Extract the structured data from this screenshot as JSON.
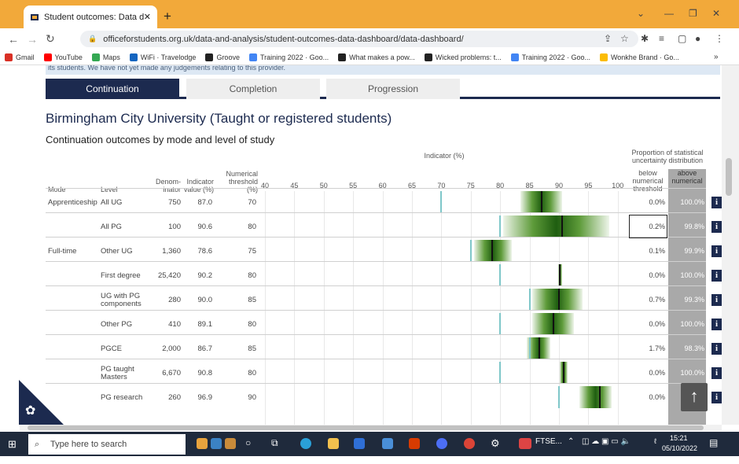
{
  "browser": {
    "tab_title": "Student outcomes: Data dashboa",
    "url": "officeforstudents.org.uk/data-and-analysis/student-outcomes-data-dashboard/data-dashboard/",
    "bookmarks": [
      {
        "label": "Gmail",
        "color": "#d93025"
      },
      {
        "label": "YouTube",
        "color": "#ff0000"
      },
      {
        "label": "Maps",
        "color": "#34a853"
      },
      {
        "label": "WiFi · Travelodge",
        "color": "#1565c0"
      },
      {
        "label": "Groove",
        "color": "#222222"
      },
      {
        "label": "Training 2022 · Goo...",
        "color": "#4285f4"
      },
      {
        "label": "What makes a pow...",
        "color": "#222222"
      },
      {
        "label": "Wicked problems: t...",
        "color": "#222222"
      },
      {
        "label": "Training 2022 · Goo...",
        "color": "#4285f4"
      },
      {
        "label": "Wonkhe Brand · Go...",
        "color": "#fbbc04"
      }
    ]
  },
  "page": {
    "top_note": "its students. We have not yet made any judgements relating to this provider.",
    "tabs": [
      "Continuation",
      "Completion",
      "Progression"
    ],
    "title": "Birmingham City University (Taught or registered students)",
    "subtitle": "Continuation outcomes by mode and level of study",
    "headers": {
      "mode": "Mode",
      "level": "Level",
      "denominator": "Denom- inator",
      "indicator": "Indicator value (%)",
      "threshold": "Numerical threshold (%)",
      "chart": "Indicator (%)",
      "proportion": "Proportion of statistical uncertainty distribution",
      "below": "below numerical threshold",
      "above": "above numerical threshold"
    },
    "ticks": [
      "40",
      "45",
      "50",
      "55",
      "60",
      "65",
      "70",
      "75",
      "80",
      "85",
      "90",
      "95",
      "100"
    ],
    "rows": [
      {
        "mode": "Apprenticeship",
        "level": "All UG",
        "denom": "750",
        "indicator": "87.0",
        "threshold": "70",
        "below": "0.0%",
        "above": "100.0%",
        "ind": 87.0,
        "thr": 70,
        "lo": 83.5,
        "hi": 90.5
      },
      {
        "mode": "",
        "level": "All PG",
        "denom": "100",
        "indicator": "90.6",
        "threshold": "80",
        "below": "0.2%",
        "above": "99.8%",
        "ind": 90.6,
        "thr": 80,
        "lo": 80.5,
        "hi": 98.5
      },
      {
        "mode": "Full-time",
        "level": "Other UG",
        "denom": "1,360",
        "indicator": "78.6",
        "threshold": "75",
        "below": "0.1%",
        "above": "99.9%",
        "ind": 78.6,
        "thr": 75,
        "lo": 75.5,
        "hi": 82
      },
      {
        "mode": "",
        "level": "First degree",
        "denom": "25,420",
        "indicator": "90.2",
        "threshold": "80",
        "below": "0.0%",
        "above": "100.0%",
        "ind": 90.2,
        "thr": 80,
        "lo": 89.8,
        "hi": 90.6
      },
      {
        "mode": "",
        "level": "UG with PG components",
        "denom": "280",
        "indicator": "90.0",
        "threshold": "85",
        "below": "0.7%",
        "above": "99.3%",
        "ind": 90.0,
        "thr": 85,
        "lo": 85.5,
        "hi": 94
      },
      {
        "mode": "",
        "level": "Other PG",
        "denom": "410",
        "indicator": "89.1",
        "threshold": "80",
        "below": "0.0%",
        "above": "100.0%",
        "ind": 89.1,
        "thr": 80,
        "lo": 85.5,
        "hi": 92.5
      },
      {
        "mode": "",
        "level": "PGCE",
        "denom": "2,000",
        "indicator": "86.7",
        "threshold": "85",
        "below": "1.7%",
        "above": "98.3%",
        "ind": 86.7,
        "thr": 85,
        "lo": 84.5,
        "hi": 88.5
      },
      {
        "mode": "",
        "level": "PG taught Masters",
        "denom": "6,670",
        "indicator": "90.8",
        "threshold": "80",
        "below": "0.0%",
        "above": "100.0%",
        "ind": 90.8,
        "thr": 80,
        "lo": 90.1,
        "hi": 91.5
      },
      {
        "mode": "",
        "level": "PG research",
        "denom": "260",
        "indicator": "96.9",
        "threshold": "90",
        "below": "0.0%",
        "above": "100.0%",
        "ind": 96.9,
        "thr": 90,
        "lo": 93.5,
        "hi": 99
      }
    ]
  },
  "taskbar": {
    "search_placeholder": "Type here to search",
    "time": "15:21",
    "date": "05/10/2022",
    "app_label": "FTSE..."
  }
}
